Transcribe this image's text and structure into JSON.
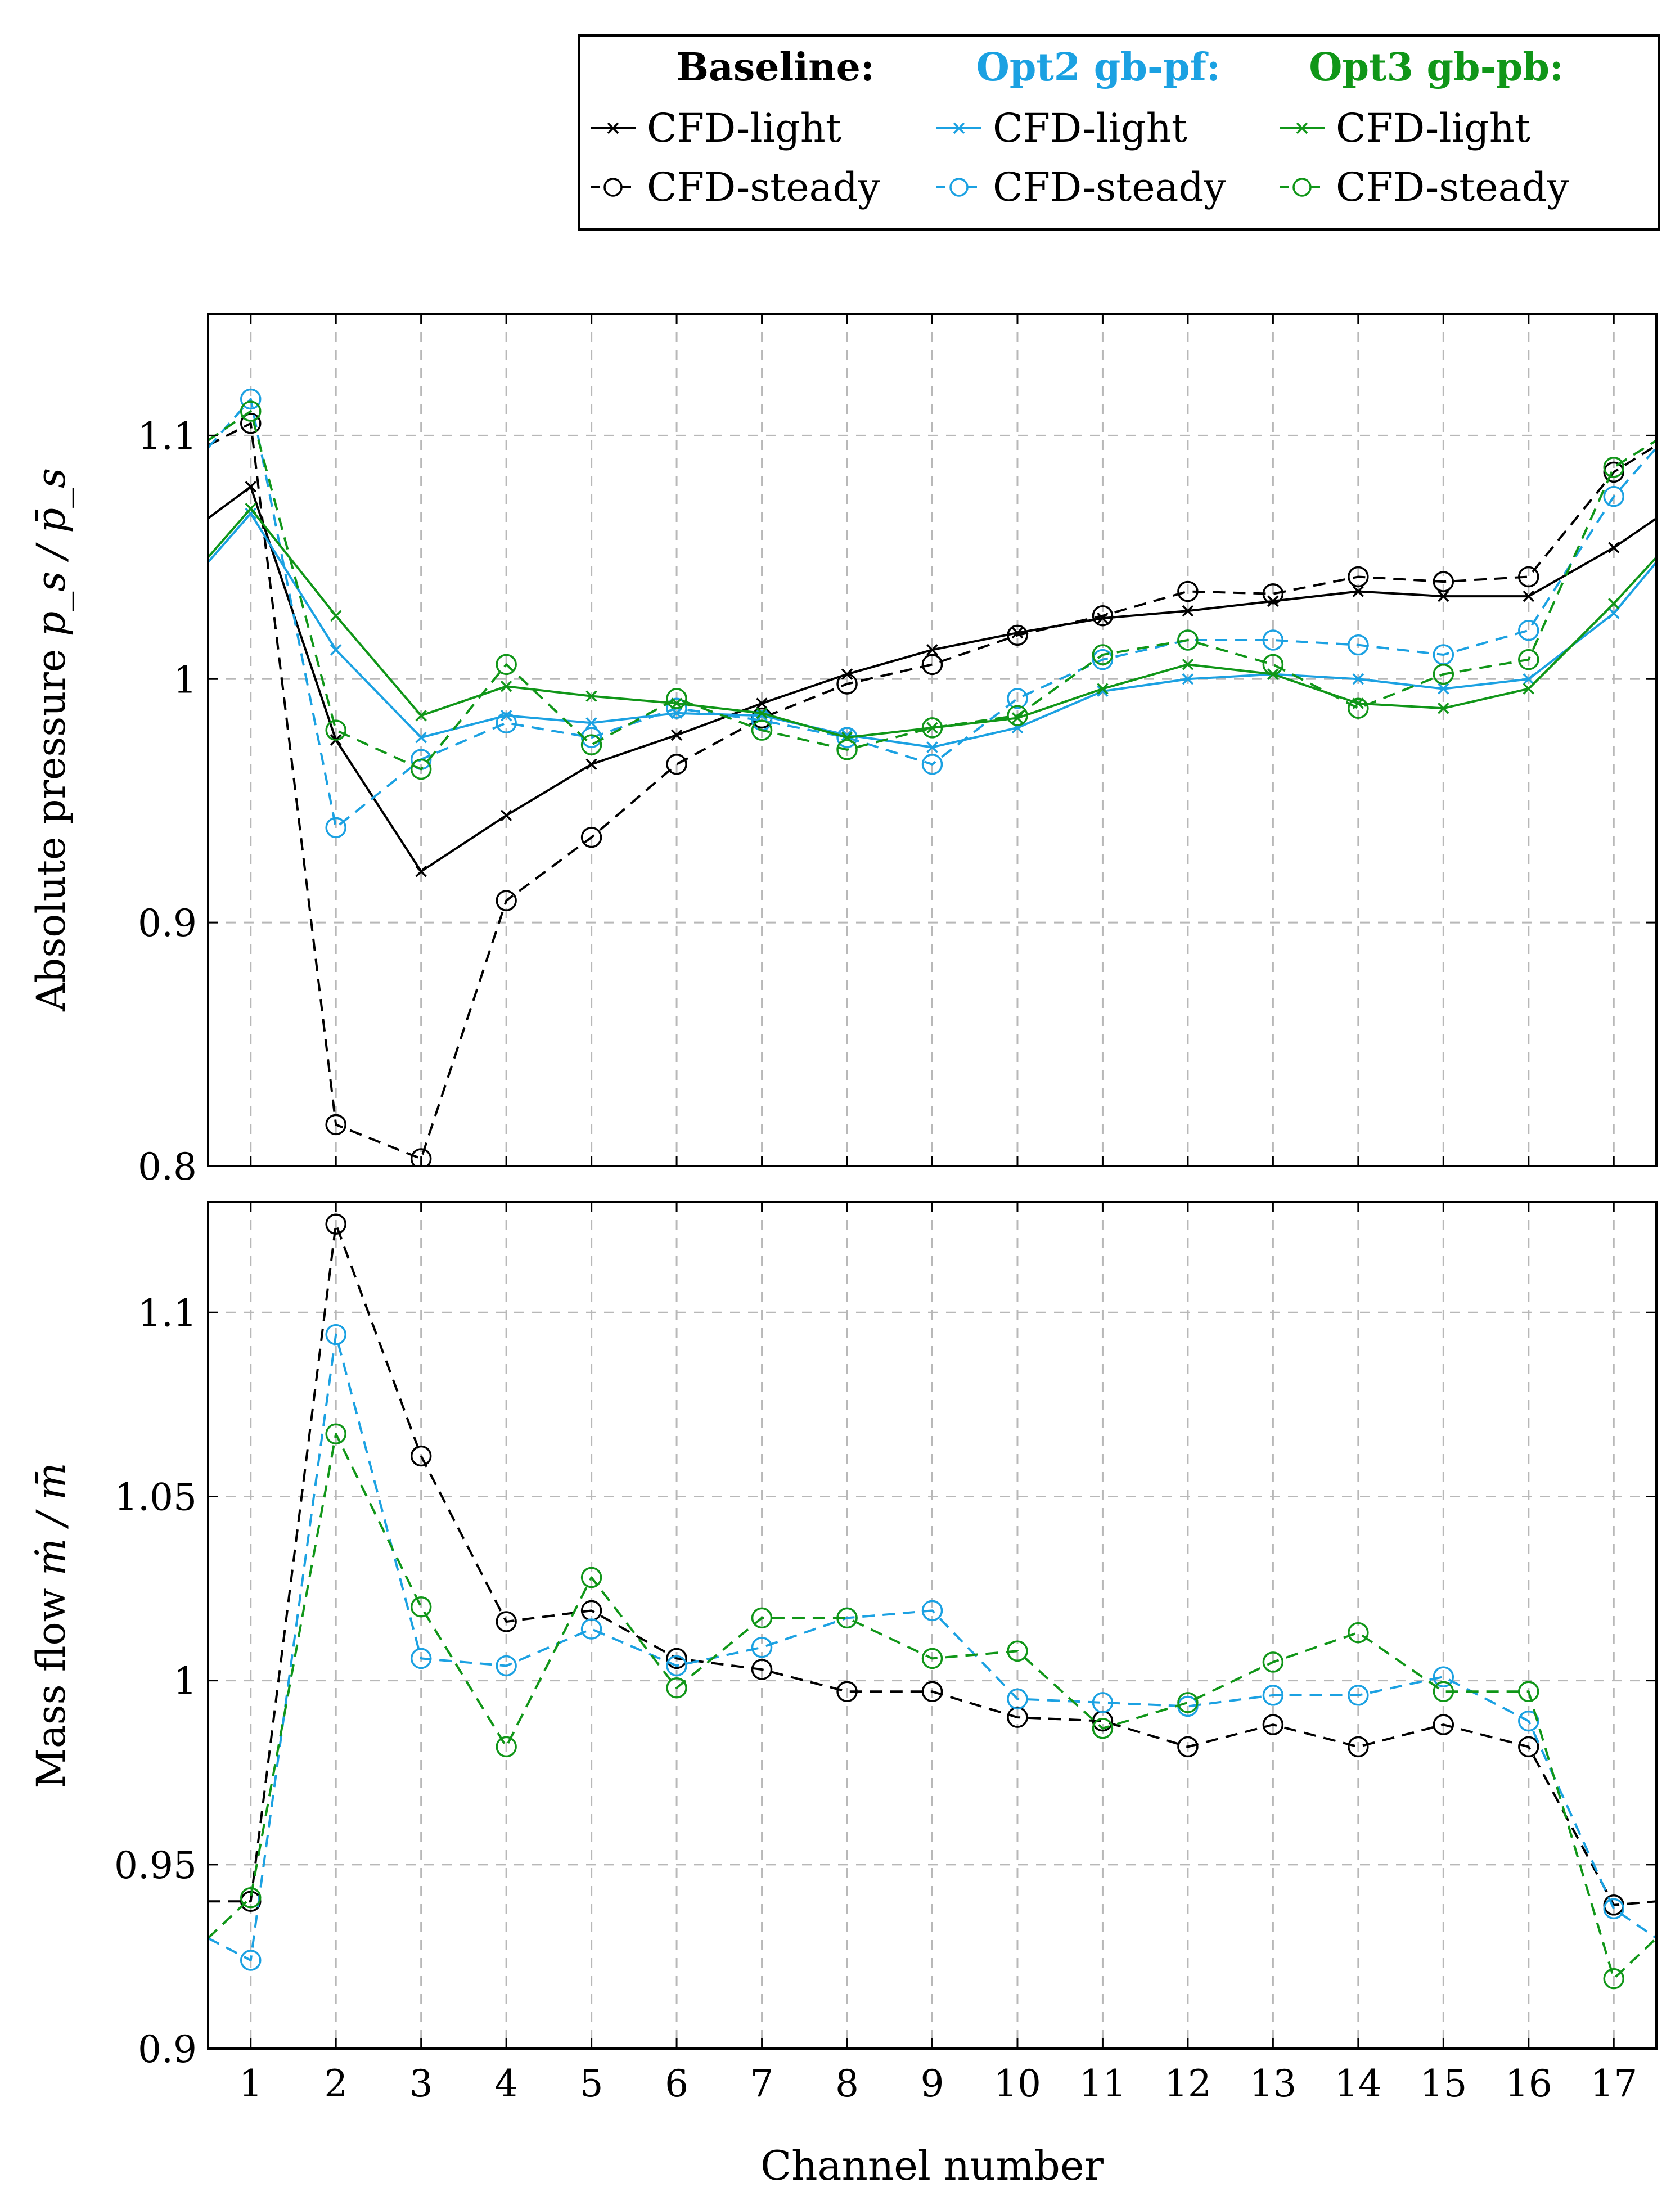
{
  "colors": {
    "baseline": "#000000",
    "opt2": "#1ba1e2",
    "opt3": "#109618",
    "grid": "#b8b8b8"
  },
  "legend": {
    "groups": [
      {
        "heading": "Baseline:",
        "key": "baseline",
        "light_label": "CFD-light",
        "steady_label": "CFD-steady"
      },
      {
        "heading": "Opt2 gb-pf:",
        "key": "opt2",
        "light_label": "CFD-light",
        "steady_label": "CFD-steady"
      },
      {
        "heading": "Opt3 gb-pb:",
        "key": "opt3",
        "light_label": "CFD-light",
        "steady_label": "CFD-steady"
      }
    ]
  },
  "chart_data": [
    {
      "type": "line",
      "ylabel_text": "Absolute pressure ",
      "ylabel_math": "p_s / p̄_s",
      "xlabel": "",
      "grid": true,
      "xlim": [
        0.5,
        17.5
      ],
      "ylim": [
        0.8,
        1.15
      ],
      "x": [
        1,
        2,
        3,
        4,
        5,
        6,
        7,
        8,
        9,
        10,
        11,
        12,
        13,
        14,
        15,
        16,
        17
      ],
      "x_tick_labels": [
        "1",
        "2",
        "3",
        "4",
        "5",
        "6",
        "7",
        "8",
        "9",
        "10",
        "11",
        "12",
        "13",
        "14",
        "15",
        "16",
        "17"
      ],
      "y_ticks": [
        0.8,
        0.9,
        1.0,
        1.1
      ],
      "y_tick_labels": [
        "0.8",
        "0.9",
        "1",
        "1.1"
      ],
      "series": [
        {
          "name": "Baseline CFD-light",
          "group": "baseline",
          "style": "light",
          "values": [
            1.079,
            0.975,
            0.921,
            0.944,
            0.965,
            0.977,
            0.99,
            1.002,
            1.012,
            1.019,
            1.025,
            1.028,
            1.032,
            1.036,
            1.034,
            1.034,
            1.054
          ],
          "edge_values": [
            1.066,
            1.066
          ]
        },
        {
          "name": "Baseline CFD-steady",
          "group": "baseline",
          "style": "steady",
          "values": [
            1.105,
            0.817,
            0.803,
            0.909,
            0.935,
            0.965,
            0.984,
            0.998,
            1.006,
            1.018,
            1.026,
            1.036,
            1.035,
            1.042,
            1.04,
            1.042,
            1.085
          ],
          "edge_values": [
            1.096,
            1.096
          ]
        },
        {
          "name": "Opt2 gb-pf CFD-light",
          "group": "opt2",
          "style": "light",
          "values": [
            1.068,
            1.012,
            0.976,
            0.985,
            0.982,
            0.986,
            0.985,
            0.977,
            0.972,
            0.98,
            0.995,
            1.0,
            1.002,
            1.0,
            0.996,
            1.0,
            1.027
          ],
          "edge_values": [
            1.048,
            1.048
          ]
        },
        {
          "name": "Opt2 gb-pf CFD-steady",
          "group": "opt2",
          "style": "steady",
          "values": [
            1.115,
            0.939,
            0.967,
            0.982,
            0.976,
            0.988,
            0.983,
            0.976,
            0.965,
            0.992,
            1.008,
            1.016,
            1.016,
            1.014,
            1.01,
            1.02,
            1.075
          ],
          "edge_values": [
            1.095,
            1.095
          ]
        },
        {
          "name": "Opt3 gb-pb CFD-light",
          "group": "opt3",
          "style": "light",
          "values": [
            1.07,
            1.026,
            0.985,
            0.997,
            0.993,
            0.99,
            0.986,
            0.976,
            0.98,
            0.984,
            0.996,
            1.006,
            1.002,
            0.99,
            0.988,
            0.996,
            1.031
          ],
          "edge_values": [
            1.05,
            1.05
          ]
        },
        {
          "name": "Opt3 gb-pb CFD-steady",
          "group": "opt3",
          "style": "steady",
          "values": [
            1.11,
            0.979,
            0.963,
            1.006,
            0.973,
            0.992,
            0.979,
            0.971,
            0.98,
            0.985,
            1.01,
            1.016,
            1.006,
            0.988,
            1.002,
            1.008,
            1.087
          ],
          "edge_values": [
            1.098,
            1.098
          ]
        }
      ]
    },
    {
      "type": "line",
      "ylabel_text": "Mass flow ",
      "ylabel_math": "ṁ / m̄",
      "xlabel": "Channel number",
      "grid": true,
      "xlim": [
        0.5,
        17.5
      ],
      "ylim": [
        0.9,
        1.13
      ],
      "x": [
        1,
        2,
        3,
        4,
        5,
        6,
        7,
        8,
        9,
        10,
        11,
        12,
        13,
        14,
        15,
        16,
        17
      ],
      "x_tick_labels": [
        "1",
        "2",
        "3",
        "4",
        "5",
        "6",
        "7",
        "8",
        "9",
        "10",
        "11",
        "12",
        "13",
        "14",
        "15",
        "16",
        "17"
      ],
      "y_ticks": [
        0.9,
        0.95,
        1.0,
        1.05,
        1.1
      ],
      "y_tick_labels": [
        "0.9",
        "0.95",
        "1",
        "1.05",
        "1.1"
      ],
      "series": [
        {
          "name": "Baseline CFD-steady",
          "group": "baseline",
          "style": "steady",
          "values": [
            0.94,
            1.124,
            1.061,
            1.016,
            1.019,
            1.006,
            1.003,
            0.997,
            0.997,
            0.99,
            0.989,
            0.982,
            0.988,
            0.982,
            0.988,
            0.982,
            0.939
          ],
          "edge_values": [
            0.94,
            0.94
          ]
        },
        {
          "name": "Opt2 gb-pf CFD-steady",
          "group": "opt2",
          "style": "steady",
          "values": [
            0.924,
            1.094,
            1.006,
            1.004,
            1.014,
            1.004,
            1.009,
            1.017,
            1.019,
            0.995,
            0.994,
            0.993,
            0.996,
            0.996,
            1.001,
            0.989,
            0.938
          ],
          "edge_values": [
            0.93,
            0.93
          ]
        },
        {
          "name": "Opt3 gb-pb CFD-steady",
          "group": "opt3",
          "style": "steady",
          "values": [
            0.941,
            1.067,
            1.02,
            0.982,
            1.028,
            0.998,
            1.017,
            1.017,
            1.006,
            1.008,
            0.987,
            0.994,
            1.005,
            1.013,
            0.997,
            0.997,
            0.919
          ],
          "edge_values": [
            0.93,
            0.93
          ]
        }
      ]
    }
  ]
}
